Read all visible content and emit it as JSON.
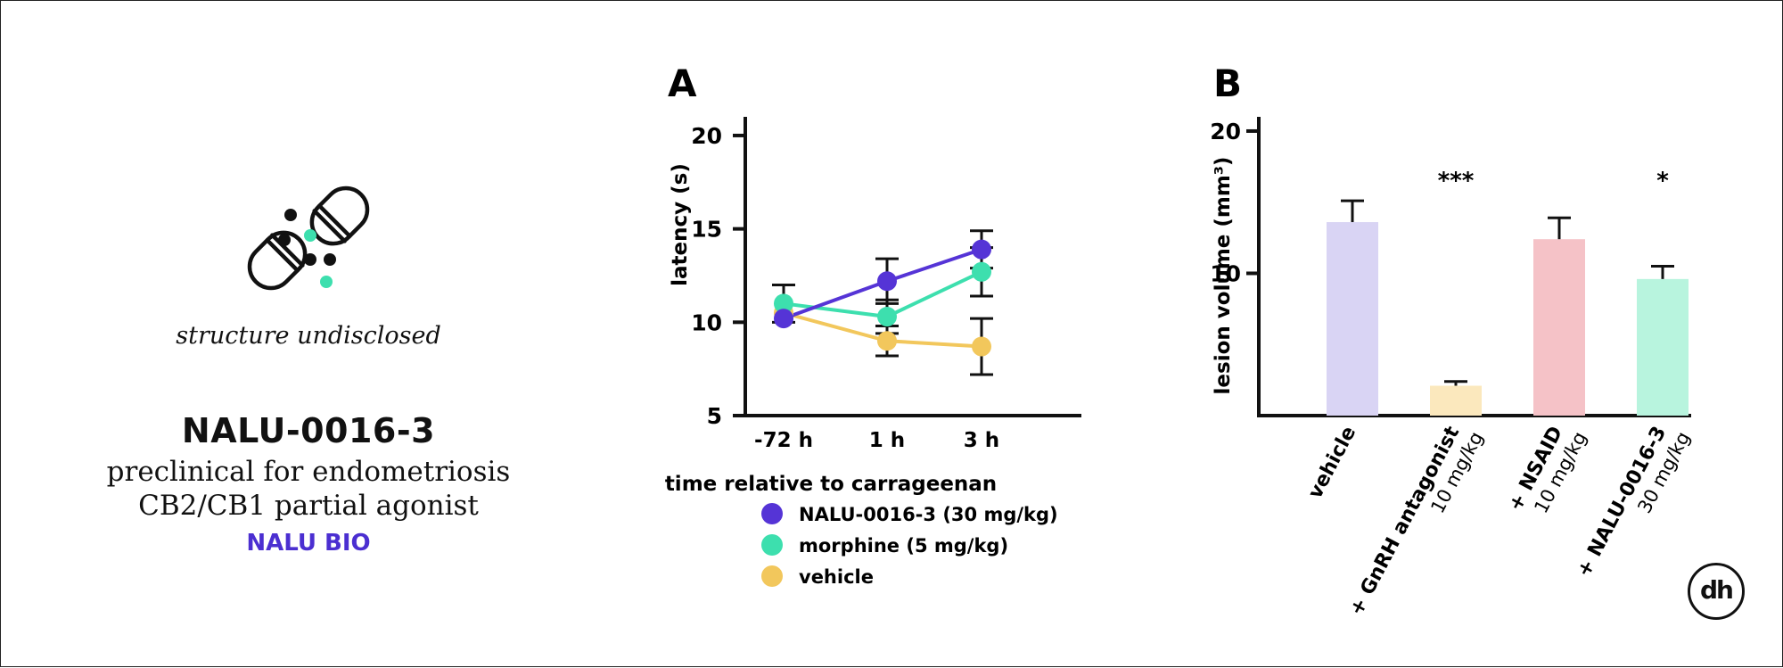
{
  "compound": {
    "caption": "structure undisclosed",
    "name": "NALU-0016-3",
    "status": "preclinical for endometriosis",
    "mechanism": "CB2/CB1 partial agonist",
    "company": "NALU BIO",
    "company_color": "#4b2fd1"
  },
  "logo": {
    "text": "dh",
    "accent": "#5a3be0"
  },
  "colors": {
    "icon_dot_accent": "#3ddfae",
    "purple": "#5534d6",
    "green": "#3ddfae",
    "yellow": "#f2c75c"
  },
  "chart_data": [
    {
      "type": "line",
      "panel_label": "A",
      "xlabel": "time relative to carrageenan",
      "ylabel": "latency (s)",
      "categories": [
        "-72 h",
        "1 h",
        "3 h"
      ],
      "ylim": [
        5,
        21
      ],
      "yticks": [
        5,
        10,
        15,
        20
      ],
      "legend_position": "bottom",
      "series": [
        {
          "name": "NALU-0016-3 (30 mg/kg)",
          "color": "#5534d6",
          "values": [
            10.2,
            12.2,
            13.9
          ],
          "errors": [
            null,
            1.2,
            1.0
          ]
        },
        {
          "name": "morphine (5 mg/kg)",
          "color": "#3ddfae",
          "values": [
            11.0,
            10.3,
            12.7
          ],
          "errors": [
            1.0,
            0.9,
            1.3
          ]
        },
        {
          "name": "vehicle",
          "color": "#f2c75c",
          "values": [
            10.5,
            9.0,
            8.7
          ],
          "errors": [
            null,
            0.8,
            1.5
          ]
        }
      ]
    },
    {
      "type": "bar",
      "panel_label": "B",
      "ylabel": "lesion volume (mm³)",
      "ylim": [
        0,
        21
      ],
      "yticks": [
        10,
        20
      ],
      "categories": [
        {
          "main": "vehicle",
          "sub": ""
        },
        {
          "main": "+ GnRH antagonist",
          "sub": "10 mg/kg"
        },
        {
          "main": "+ NSAID",
          "sub": "10 mg/kg"
        },
        {
          "main": "+ NALU-0016-3",
          "sub": "30 mg/kg"
        }
      ],
      "values": [
        13.6,
        2.1,
        12.4,
        9.6
      ],
      "errors": [
        1.5,
        0.3,
        1.5,
        0.9
      ],
      "colors": [
        "#d9d4f4",
        "#fbe8bd",
        "#f5c2c7",
        "#b8f4de"
      ],
      "annotations": [
        "",
        "***",
        "",
        "*"
      ]
    }
  ]
}
